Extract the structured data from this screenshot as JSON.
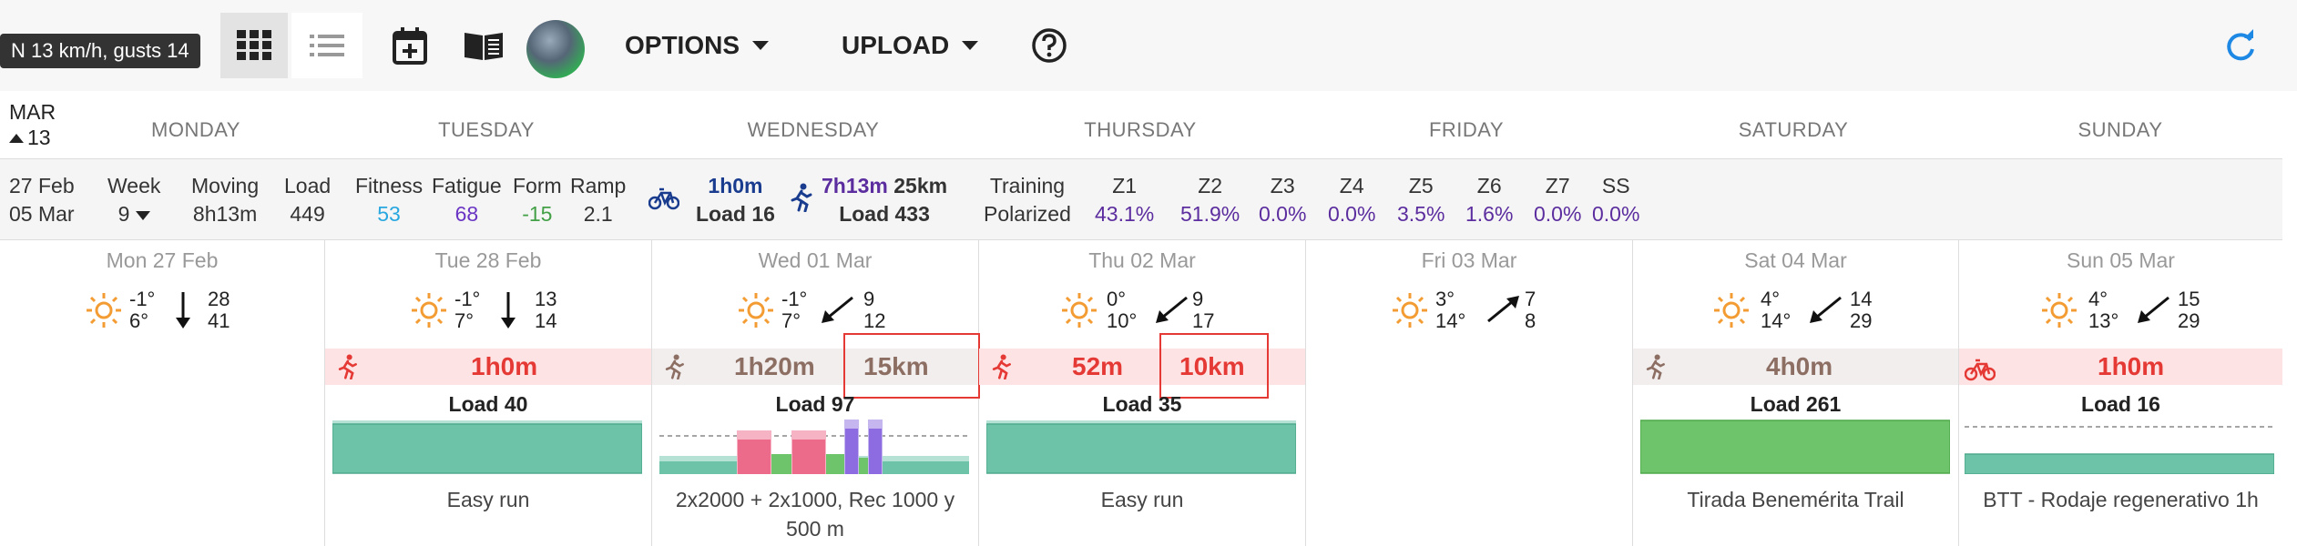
{
  "toolbar": {
    "wind_tooltip": "N 13 km/h, gusts 14",
    "options_label": "OPTIONS",
    "upload_label": "UPLOAD"
  },
  "calendar": {
    "month": "MAR",
    "week_number": "13",
    "day_names": [
      "MONDAY",
      "TUESDAY",
      "WEDNESDAY",
      "THURSDAY",
      "FRIDAY",
      "SATURDAY",
      "SUNDAY"
    ]
  },
  "summary": {
    "date_from": "27 Feb",
    "date_to": "05 Mar",
    "week_label": "Week",
    "week_value": "9",
    "moving_label": "Moving",
    "moving_value": "8h13m",
    "load_label": "Load",
    "load_value": "449",
    "fitness_label": "Fitness",
    "fitness_value": "53",
    "fatigue_label": "Fatigue",
    "fatigue_value": "68",
    "form_label": "Form",
    "form_value": "-15",
    "ramp_label": "Ramp",
    "ramp_value": "2.1",
    "ride_time": "1h0m",
    "ride_load": "Load 16",
    "run_time": "7h13m",
    "run_distance": "25km",
    "run_load": "Load 433",
    "training_label": "Training",
    "training_value": "Polarized",
    "zones": [
      {
        "name": "Z1",
        "value": "43.1%"
      },
      {
        "name": "Z2",
        "value": "51.9%"
      },
      {
        "name": "Z3",
        "value": "0.0%"
      },
      {
        "name": "Z4",
        "value": "0.0%"
      },
      {
        "name": "Z5",
        "value": "3.5%"
      },
      {
        "name": "Z6",
        "value": "1.6%"
      },
      {
        "name": "Z7",
        "value": "0.0%"
      },
      {
        "name": "SS",
        "value": "0.0%"
      }
    ]
  },
  "days": [
    {
      "date": "Mon 27 Feb",
      "temp_high": "-1°",
      "temp_low": "6°",
      "wind_1": "28",
      "wind_2": "41",
      "wind_icon": "arrow-south"
    },
    {
      "date": "Tue 28 Feb",
      "temp_high": "-1°",
      "temp_low": "7°",
      "wind_1": "13",
      "wind_2": "14",
      "wind_icon": "arrow-south",
      "sport": "run",
      "duration": "1h0m",
      "load": "Load 40",
      "description": "Easy run"
    },
    {
      "date": "Wed 01 Mar",
      "temp_high": "-1°",
      "temp_low": "7°",
      "wind_1": "9",
      "wind_2": "12",
      "wind_icon": "arrow-southwest",
      "sport": "run",
      "duration": "1h20m",
      "distance": "15km",
      "load": "Load 97",
      "description": "2x2000 + 2x1000, Rec 1000 y 500 m"
    },
    {
      "date": "Thu 02 Mar",
      "temp_high": "0°",
      "temp_low": "10°",
      "wind_1": "9",
      "wind_2": "17",
      "wind_icon": "arrow-southwest",
      "sport": "run",
      "duration": "52m",
      "distance": "10km",
      "load": "Load 35",
      "description": "Easy run"
    },
    {
      "date": "Fri 03 Mar",
      "temp_high": "3°",
      "temp_low": "14°",
      "wind_1": "7",
      "wind_2": "8",
      "wind_icon": "arrow-northeast"
    },
    {
      "date": "Sat 04 Mar",
      "temp_high": "4°",
      "temp_low": "14°",
      "wind_1": "14",
      "wind_2": "29",
      "wind_icon": "arrow-southwest",
      "sport": "run",
      "duration": "4h0m",
      "load": "Load 261",
      "description": "Tirada Benemérita Trail"
    },
    {
      "date": "Sun 05 Mar",
      "temp_high": "4°",
      "temp_low": "13°",
      "wind_1": "15",
      "wind_2": "29",
      "wind_icon": "arrow-southwest",
      "sport": "ride",
      "duration": "1h0m",
      "load": "Load 16",
      "description": "BTT - Rodaje regenerativo 1h"
    }
  ],
  "colors": {
    "sun": "#f39c34",
    "run_red": "#e53935",
    "run_brown": "#8d6e63",
    "easy_bar": "#6cc3a8",
    "long_bar": "#6ec46a",
    "interval_pink": "#ec6b8a",
    "interval_purple": "#8d6be0"
  }
}
